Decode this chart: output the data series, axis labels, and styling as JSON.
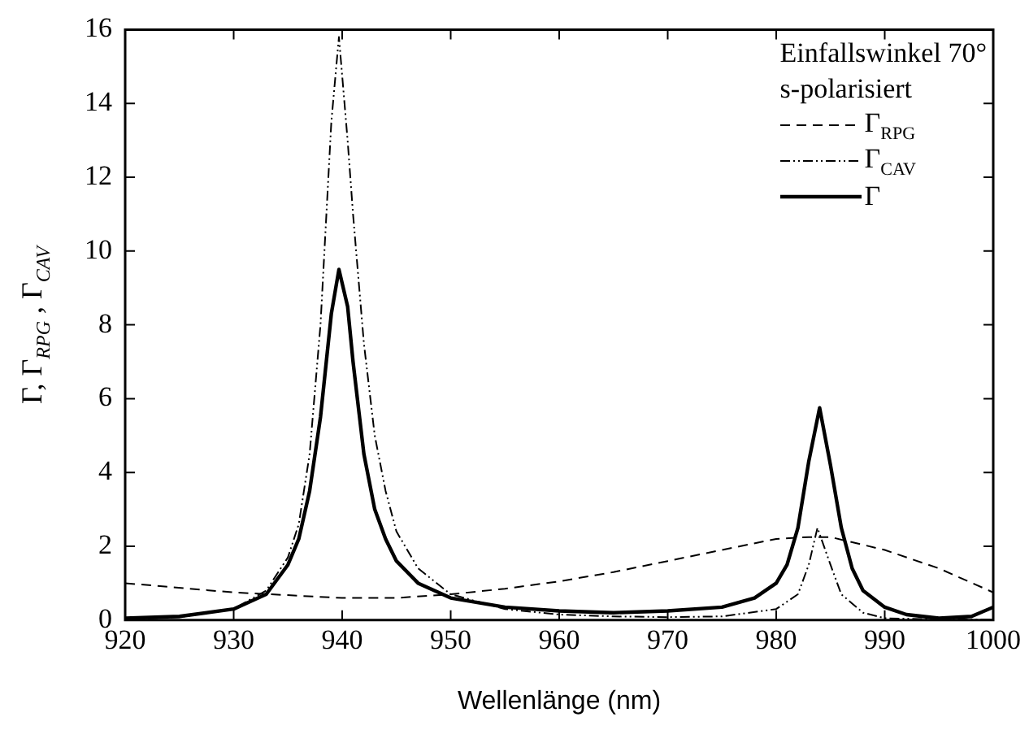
{
  "chart_data": {
    "type": "line",
    "xlabel": "Wellenlänge (nm)",
    "ylabel": "Γ, Γ$_{RPG}$ , Γ$_{CAV}$",
    "legend_title": "Einfallswinkel 70°\ns-polarisiert",
    "xlim": [
      920,
      1000
    ],
    "ylim": [
      0,
      16
    ],
    "xticks": [
      920,
      930,
      940,
      950,
      960,
      970,
      980,
      990,
      1000
    ],
    "yticks": [
      0,
      2,
      4,
      6,
      8,
      10,
      12,
      14,
      16
    ],
    "grid": false,
    "legend": "top right",
    "marker": "none",
    "series": [
      {
        "name": "Γ$_{RPG}$",
        "color": "#000000",
        "line_style": "dashed",
        "x": [
          920,
          930,
          940,
          945,
          950,
          955,
          960,
          965,
          970,
          975,
          980,
          983,
          985,
          990,
          995,
          1000
        ],
        "values": [
          1.0,
          0.75,
          0.6,
          0.6,
          0.7,
          0.85,
          1.05,
          1.3,
          1.6,
          1.9,
          2.2,
          2.25,
          2.25,
          1.9,
          1.4,
          0.75
        ]
      },
      {
        "name": "Γ$_{CAV}$",
        "color": "#000000",
        "line_style": "dotted",
        "x": [
          920,
          925,
          930,
          933,
          935,
          936,
          937,
          938,
          939,
          939.7,
          940.5,
          941,
          942,
          943,
          944,
          945,
          947,
          950,
          955,
          960,
          965,
          970,
          975,
          980,
          982,
          983,
          983.8,
          985,
          986,
          988,
          990,
          995,
          1000
        ],
        "values": [
          0.02,
          0.08,
          0.3,
          0.8,
          1.7,
          2.6,
          4.5,
          8,
          13.5,
          15.8,
          13,
          11,
          7.5,
          5,
          3.5,
          2.4,
          1.4,
          0.7,
          0.3,
          0.15,
          0.1,
          0.08,
          0.1,
          0.3,
          0.7,
          1.5,
          2.5,
          1.5,
          0.7,
          0.2,
          0.05,
          0.02,
          0.02
        ]
      },
      {
        "name": "Γ",
        "color": "#000000",
        "line_style": "solid",
        "x": [
          920,
          925,
          930,
          933,
          935,
          936,
          937,
          938,
          939,
          939.7,
          940.5,
          941,
          942,
          943,
          944,
          945,
          947,
          950,
          955,
          960,
          965,
          970,
          975,
          978,
          980,
          981,
          982,
          983,
          984,
          985,
          986,
          987,
          988,
          990,
          992,
          995,
          998,
          1000
        ],
        "values": [
          0.05,
          0.1,
          0.3,
          0.7,
          1.5,
          2.2,
          3.5,
          5.5,
          8.3,
          9.5,
          8.5,
          7,
          4.5,
          3,
          2.2,
          1.6,
          1.0,
          0.6,
          0.35,
          0.25,
          0.2,
          0.25,
          0.35,
          0.6,
          1.0,
          1.5,
          2.5,
          4.3,
          5.75,
          4.2,
          2.5,
          1.4,
          0.8,
          0.35,
          0.15,
          0.05,
          0.1,
          0.35
        ]
      }
    ]
  }
}
